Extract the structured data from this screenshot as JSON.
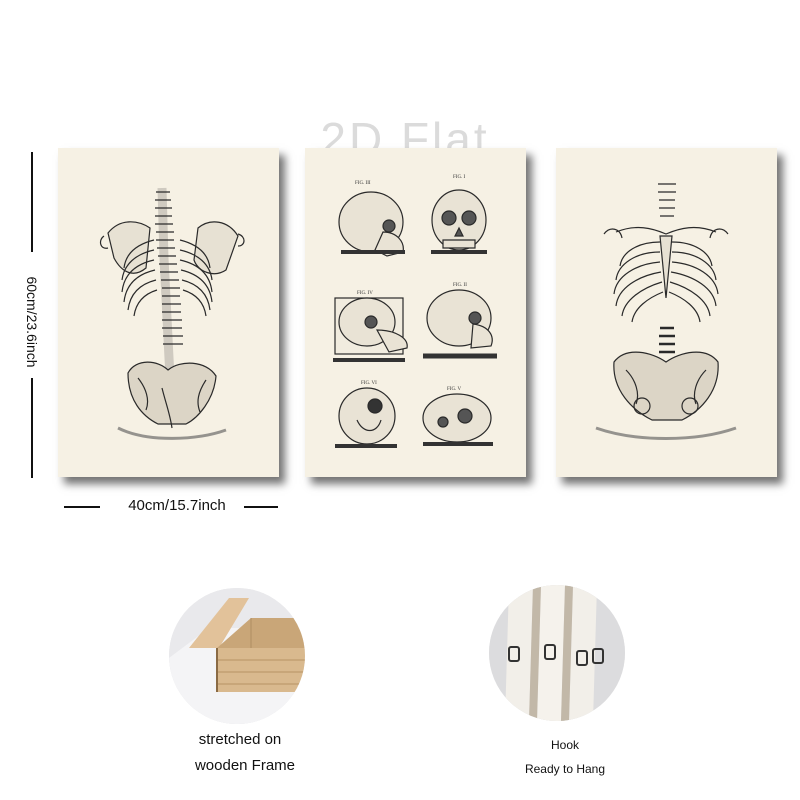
{
  "watermark": "2D Flat",
  "dimensions": {
    "height_label": "60cm/23.6inch",
    "width_label": "40cm/15.7inch"
  },
  "panels": [
    {
      "subject": "skeleton-back-torso"
    },
    {
      "subject": "skull-studies"
    },
    {
      "subject": "skeleton-front-torso"
    }
  ],
  "skull_labels": [
    "FIG. III",
    "FIG. I",
    "FIG. IV",
    "FIG. II",
    "FIG. VI",
    "FIG. V"
  ],
  "features": {
    "frame_line1": "stretched on",
    "frame_line2": "wooden Frame",
    "hook_line1": "Hook",
    "hook_line2": "Ready to Hang"
  },
  "colors": {
    "paper": "#f6f1e4",
    "ink": "#2a2a2a",
    "wood": "#d9b98e"
  }
}
